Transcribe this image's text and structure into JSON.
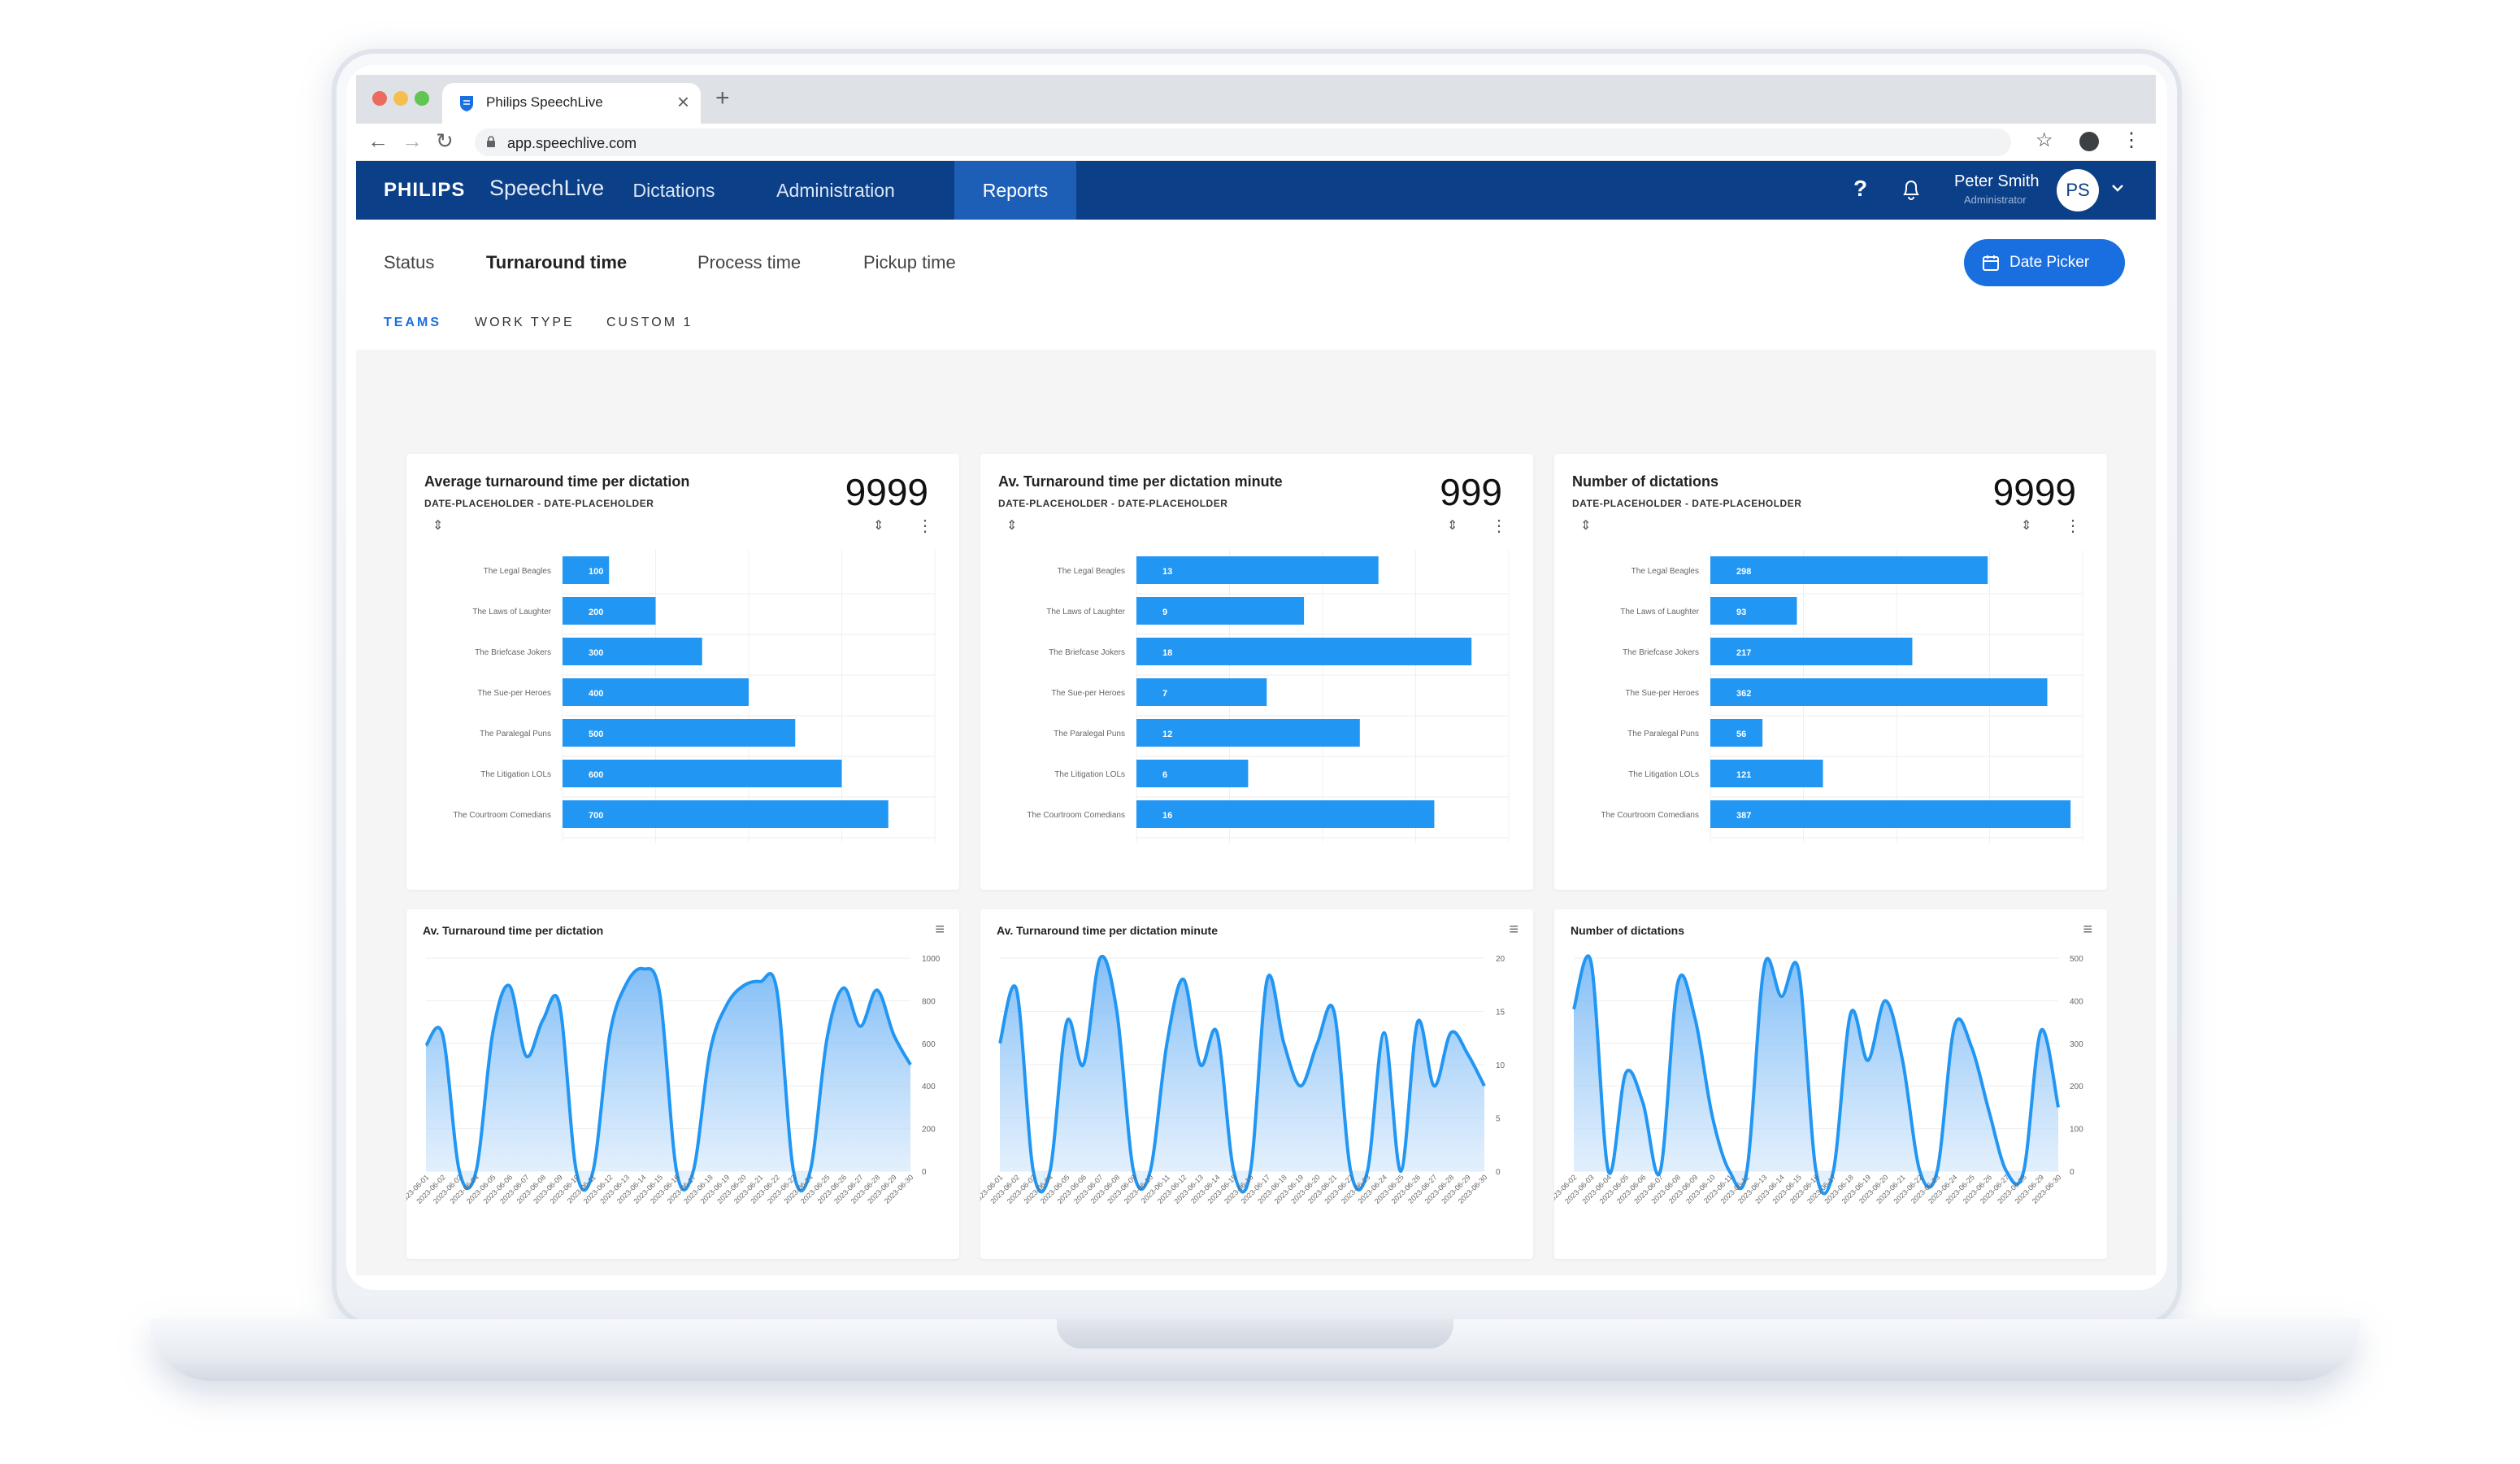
{
  "browser": {
    "tab_title": "Philips SpeechLive",
    "url": "app.speechlive.com",
    "new_tab": "+",
    "close": "×"
  },
  "app": {
    "brand": "PHILIPS",
    "product": "SpeechLive",
    "nav": [
      "Dictations",
      "Administration",
      "Reports"
    ],
    "active_nav": "Reports",
    "help": "?",
    "user": {
      "name": "Peter Smith",
      "role": "Administrator",
      "initials": "PS"
    }
  },
  "reports": {
    "tabs": [
      "Status",
      "Turnaround time",
      "Process time",
      "Pickup time"
    ],
    "active_tab": "Turnaround time",
    "date_picker": "Date Picker",
    "groups": [
      "TEAMS",
      "WORK TYPE",
      "CUSTOM 1"
    ],
    "active_group": "TEAMS"
  },
  "colors": {
    "brand": "#0b3f87",
    "accent": "#1a6fe0",
    "bar": "#2196f3"
  },
  "summary_cards": [
    {
      "title": "Average turnaround time per dictation",
      "range": "DATE-PLACEHOLDER - DATE-PLACEHOLDER",
      "total": "9999"
    },
    {
      "title": "Av. Turnaround time per dictation minute",
      "range": "DATE-PLACEHOLDER - DATE-PLACEHOLDER",
      "total": "999"
    },
    {
      "title": "Number of dictations",
      "range": "DATE-PLACEHOLDER - DATE-PLACEHOLDER",
      "total": "9999"
    }
  ],
  "line_cards": [
    {
      "title": "Av. Turnaround time per dictation"
    },
    {
      "title": "Av. Turnaround time per dictation minute"
    },
    {
      "title": "Number of dictations"
    }
  ],
  "chart_data": [
    {
      "type": "bar",
      "orientation": "horizontal",
      "title": "Average turnaround time per dictation",
      "categories": [
        "The Legal Beagles",
        "The Laws of Laughter",
        "The Briefcase Jokers",
        "The Sue-per Heroes",
        "The Paralegal Puns",
        "The Litigation LOLs",
        "The Courtroom Comedians"
      ],
      "values": [
        100,
        200,
        300,
        400,
        500,
        600,
        700
      ],
      "xlim": [
        0,
        800
      ]
    },
    {
      "type": "bar",
      "orientation": "horizontal",
      "title": "Av. Turnaround time per dictation minute",
      "categories": [
        "The Legal Beagles",
        "The Laws of Laughter",
        "The Briefcase Jokers",
        "The Sue-per Heroes",
        "The Paralegal Puns",
        "The Litigation LOLs",
        "The Courtroom Comedians"
      ],
      "values": [
        13,
        9,
        18,
        7,
        12,
        6,
        16
      ],
      "xlim": [
        0,
        20
      ]
    },
    {
      "type": "bar",
      "orientation": "horizontal",
      "title": "Number of dictations",
      "categories": [
        "The Legal Beagles",
        "The Laws of Laughter",
        "The Briefcase Jokers",
        "The Sue-per Heroes",
        "The Paralegal Puns",
        "The Litigation LOLs",
        "The Courtroom Comedians"
      ],
      "values": [
        298,
        93,
        217,
        362,
        56,
        121,
        387
      ],
      "xlim": [
        0,
        400
      ]
    },
    {
      "type": "area",
      "title": "Av. Turnaround time per dictation",
      "x": [
        "2023-06-01",
        "2023-06-02",
        "2023-06-03",
        "2023-06-04",
        "2023-06-05",
        "2023-06-06",
        "2023-06-07",
        "2023-06-08",
        "2023-06-09",
        "2023-06-10",
        "2023-06-11",
        "2023-06-12",
        "2023-06-13",
        "2023-06-14",
        "2023-06-15",
        "2023-06-16",
        "2023-06-17",
        "2023-06-18",
        "2023-06-19",
        "2023-06-20",
        "2023-06-21",
        "2023-06-22",
        "2023-06-23",
        "2023-06-24",
        "2023-06-25",
        "2023-06-26",
        "2023-06-27",
        "2023-06-28",
        "2023-06-29",
        "2023-06-30"
      ],
      "values": [
        590,
        640,
        0,
        0,
        650,
        870,
        540,
        710,
        780,
        0,
        0,
        640,
        880,
        950,
        830,
        0,
        0,
        560,
        780,
        870,
        890,
        850,
        0,
        0,
        620,
        860,
        680,
        850,
        640,
        500
      ],
      "ylim": [
        0,
        1000
      ],
      "yticks": [
        0,
        200,
        400,
        600,
        800,
        1000
      ]
    },
    {
      "type": "area",
      "title": "Av. Turnaround time per dictation minute",
      "x": [
        "2023-06-01",
        "2023-06-02",
        "2023-06-03",
        "2023-06-04",
        "2023-06-05",
        "2023-06-06",
        "2023-06-07",
        "2023-06-08",
        "2023-06-09",
        "2023-06-10",
        "2023-06-11",
        "2023-06-12",
        "2023-06-13",
        "2023-06-14",
        "2023-06-15",
        "2023-06-16",
        "2023-06-17",
        "2023-06-18",
        "2023-06-19",
        "2023-06-20",
        "2023-06-21",
        "2023-06-22",
        "2023-06-23",
        "2023-06-24",
        "2023-06-25",
        "2023-06-26",
        "2023-06-27",
        "2023-06-28",
        "2023-06-29",
        "2023-06-30"
      ],
      "values": [
        12,
        17,
        0,
        0,
        14,
        10,
        20,
        15,
        0,
        0,
        12,
        18,
        10,
        13,
        0,
        0,
        18,
        12,
        8,
        12,
        15,
        0,
        0,
        13,
        0,
        14,
        8,
        13,
        11,
        8
      ],
      "ylim": [
        0,
        20
      ],
      "yticks": [
        0,
        5,
        10,
        15,
        20
      ]
    },
    {
      "type": "area",
      "title": "Number of dictations",
      "x": [
        "2023-06-02",
        "2023-06-03",
        "2023-06-04",
        "2023-06-05",
        "2023-06-06",
        "2023-06-07",
        "2023-06-08",
        "2023-06-09",
        "2023-06-10",
        "2023-06-11",
        "2023-06-12",
        "2023-06-13",
        "2023-06-14",
        "2023-06-15",
        "2023-06-16",
        "2023-06-17",
        "2023-06-18",
        "2023-06-19",
        "2023-06-20",
        "2023-06-21",
        "2023-06-22",
        "2023-06-23",
        "2023-06-24",
        "2023-06-25",
        "2023-06-26",
        "2023-06-27",
        "2023-06-28",
        "2023-06-29",
        "2023-06-30"
      ],
      "values": [
        380,
        490,
        0,
        230,
        160,
        0,
        440,
        360,
        130,
        0,
        0,
        480,
        410,
        470,
        0,
        0,
        370,
        260,
        400,
        260,
        0,
        0,
        340,
        290,
        140,
        0,
        0,
        330,
        150
      ],
      "ylim": [
        0,
        500
      ],
      "yticks": [
        0,
        100,
        200,
        300,
        400,
        500
      ]
    }
  ]
}
